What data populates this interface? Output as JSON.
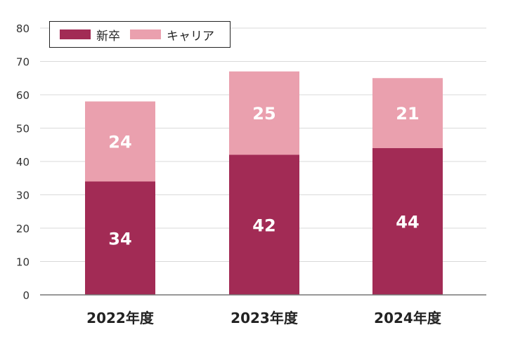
{
  "chart_data": {
    "type": "bar",
    "stacked": true,
    "categories": [
      "2022年度",
      "2023年度",
      "2024年度"
    ],
    "series": [
      {
        "name": "新卒",
        "values": [
          34,
          42,
          44
        ],
        "color": "#a22b55"
      },
      {
        "name": "キャリア",
        "values": [
          24,
          25,
          21
        ],
        "color": "#eaa0ae"
      }
    ],
    "yticks": [
      0,
      10,
      20,
      30,
      40,
      50,
      60,
      70,
      80
    ],
    "ylim": [
      0,
      80
    ],
    "grid": true,
    "legend_position": "top-left",
    "title": "",
    "xlabel": "",
    "ylabel": ""
  }
}
